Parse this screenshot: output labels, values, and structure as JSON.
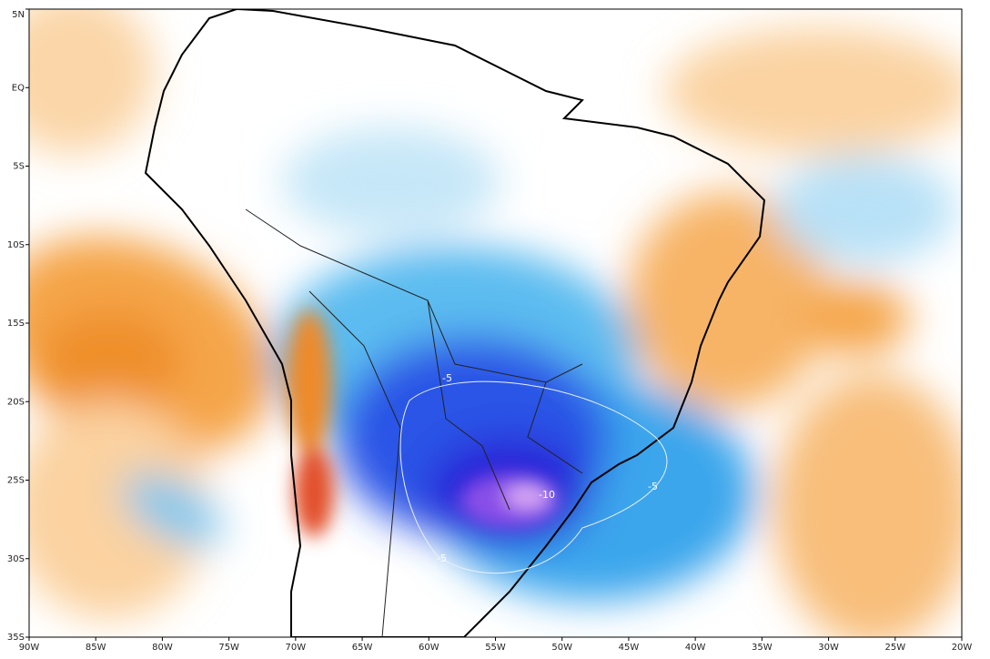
{
  "map": {
    "lat_labels": [
      "5N",
      "EQ",
      "5S",
      "10S",
      "15S",
      "20S",
      "25S",
      "30S",
      "35S"
    ],
    "lon_labels": [
      "90W",
      "85W",
      "80W",
      "75W",
      "70W",
      "65W",
      "60W",
      "55W",
      "50W",
      "45W",
      "40W",
      "35W",
      "30W",
      "25W",
      "20W"
    ],
    "contour_labels": [
      "-5",
      "-10",
      "-5",
      "-5"
    ]
  }
}
